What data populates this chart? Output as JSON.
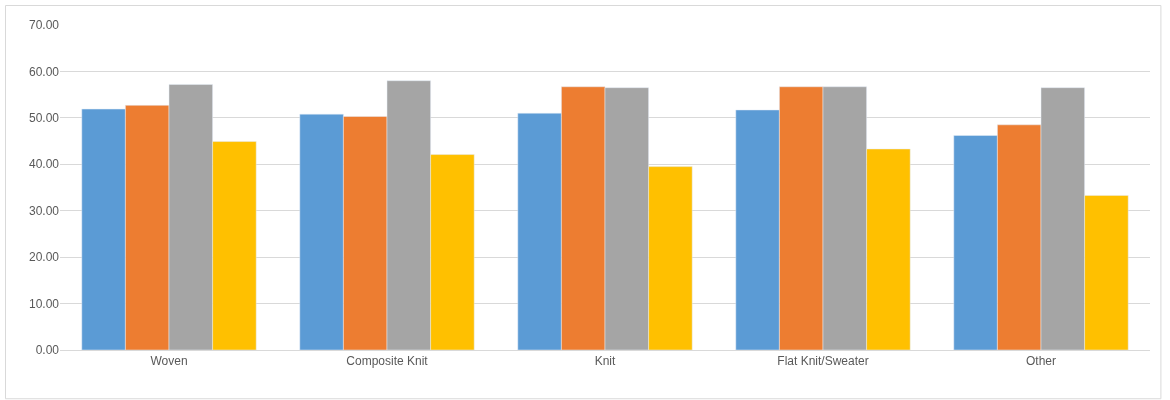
{
  "chart_data": {
    "type": "bar",
    "categories": [
      "Woven",
      "Composite Knit",
      "Knit",
      "Flat Knit/Sweater",
      "Other"
    ],
    "series": [
      {
        "color": "#5b9bd5",
        "values": [
          51.9,
          50.8,
          51.0,
          51.7,
          46.2
        ]
      },
      {
        "color": "#ed7d31",
        "values": [
          52.7,
          50.3,
          56.7,
          56.7,
          48.5
        ]
      },
      {
        "color": "#a5a5a5",
        "values": [
          57.2,
          58.0,
          56.5,
          56.7,
          56.5
        ]
      },
      {
        "color": "#ffc000",
        "values": [
          44.9,
          42.1,
          39.5,
          43.3,
          33.3
        ]
      }
    ],
    "ylim": [
      0,
      70
    ],
    "yticks": [
      {
        "value": 0,
        "label": "0.00"
      },
      {
        "value": 10,
        "label": "10.00"
      },
      {
        "value": 20,
        "label": "20.00"
      },
      {
        "value": 30,
        "label": "30.00"
      },
      {
        "value": 40,
        "label": "40.00"
      },
      {
        "value": 50,
        "label": "50.00"
      },
      {
        "value": 60,
        "label": "60.00"
      },
      {
        "value": 70,
        "label": "70.00"
      }
    ],
    "grid": "y"
  }
}
